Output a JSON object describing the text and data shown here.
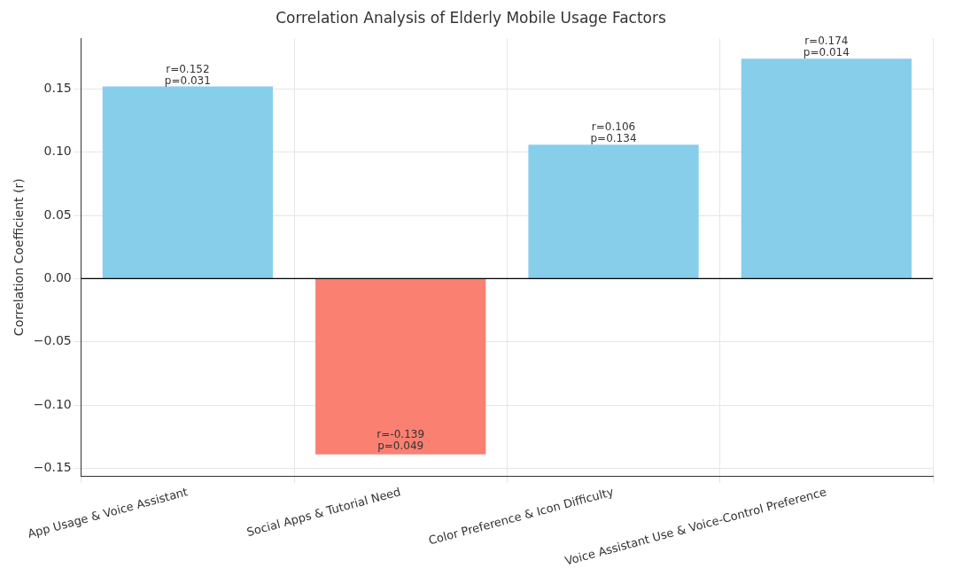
{
  "chart_data": {
    "type": "bar",
    "title": "Correlation Analysis of Elderly Mobile Usage Factors",
    "ylabel": "Correlation Coefficient (r)",
    "categories": [
      "App Usage & Voice Assistant",
      "Social Apps & Tutorial Need",
      "Color Preference & Icon Difficulty",
      "Voice Assistant Use & Voice-Control Preference"
    ],
    "values": [
      0.152,
      -0.139,
      0.106,
      0.174
    ],
    "colors": [
      "#87ceeb",
      "#fa8072",
      "#87ceeb",
      "#87ceeb"
    ],
    "value_labels": [
      "r=0.152\np=0.031",
      "r=-0.139\np=0.049",
      "r=0.106\np=0.134",
      "r=0.174\np=0.014"
    ],
    "ylim": [
      -0.156,
      0.19
    ],
    "yticks": [
      {
        "value": -0.15,
        "label": "−0.15"
      },
      {
        "value": -0.1,
        "label": "−0.10"
      },
      {
        "value": -0.05,
        "label": "−0.05"
      },
      {
        "value": 0,
        "label": "0.00"
      },
      {
        "value": 0.05,
        "label": "0.05"
      },
      {
        "value": 0.1,
        "label": "0.10"
      },
      {
        "value": 0.15,
        "label": "0.15"
      }
    ],
    "ref_lines": [
      {
        "axis": "y",
        "value": 0,
        "color": "#000000"
      }
    ],
    "grid": true
  }
}
